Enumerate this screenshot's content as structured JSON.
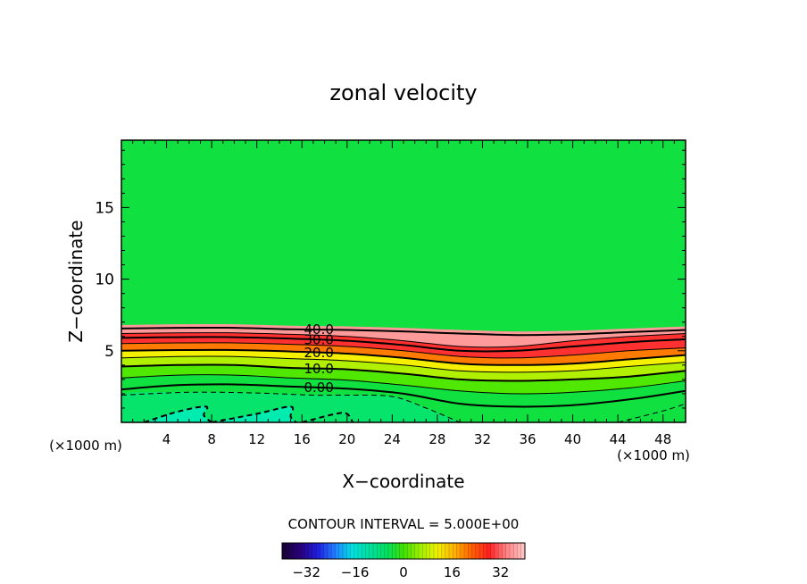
{
  "chart_data": {
    "type": "contour",
    "title": "zonal velocity",
    "xlabel": "X−coordinate",
    "ylabel": "Z−coordinate",
    "x_unit_label": "(×1000 m)",
    "y_unit_label": "(×1000 m)",
    "xlim": [
      0,
      50
    ],
    "ylim": [
      0,
      19.7
    ],
    "x_ticks": [
      4,
      8,
      12,
      16,
      20,
      24,
      28,
      32,
      36,
      40,
      44,
      48
    ],
    "x_tick_labels": [
      "4",
      "8",
      "12",
      "16",
      "20",
      "24",
      "28",
      "32",
      "36",
      "40",
      "44",
      "48"
    ],
    "y_ticks": [
      5,
      10,
      15
    ],
    "y_tick_labels": [
      "5",
      "10",
      "15"
    ],
    "contour_interval_text": "CONTOUR INTERVAL = 5.000E+00",
    "contour_interval": 5,
    "contour_labels": [
      {
        "text": "40.0",
        "value": 40
      },
      {
        "text": "30.0",
        "value": 30
      },
      {
        "text": "20.0",
        "value": 20
      },
      {
        "text": "10.0",
        "value": 10
      },
      {
        "text": "0.00",
        "value": 0
      }
    ],
    "label_x": 17.5,
    "contours": [
      {
        "value": 40,
        "z": [
          6.55,
          6.6,
          6.6,
          6.5,
          6.45,
          6.35,
          6.2,
          6.1,
          6.15,
          6.3,
          6.45
        ]
      },
      {
        "value": 35,
        "z": [
          6.2,
          6.25,
          6.25,
          6.15,
          6.0,
          5.7,
          5.3,
          5.3,
          5.7,
          6.0,
          6.2
        ]
      },
      {
        "value": 30,
        "z": [
          5.9,
          5.95,
          5.95,
          5.85,
          5.7,
          5.4,
          5.0,
          5.0,
          5.3,
          5.6,
          5.8
        ]
      },
      {
        "value": 25,
        "z": [
          5.5,
          5.55,
          5.55,
          5.45,
          5.3,
          5.0,
          4.6,
          4.5,
          4.7,
          5.0,
          5.2
        ]
      },
      {
        "value": 20,
        "z": [
          5.0,
          5.05,
          5.05,
          4.95,
          4.8,
          4.5,
          4.1,
          4.0,
          4.1,
          4.4,
          4.7
        ]
      },
      {
        "value": 15,
        "z": [
          4.5,
          4.6,
          4.6,
          4.45,
          4.3,
          4.0,
          3.6,
          3.5,
          3.6,
          3.9,
          4.2
        ]
      },
      {
        "value": 10,
        "z": [
          3.9,
          4.0,
          4.0,
          3.8,
          3.7,
          3.4,
          3.0,
          2.9,
          3.0,
          3.2,
          3.6
        ]
      },
      {
        "value": 5,
        "z": [
          3.1,
          3.3,
          3.3,
          3.1,
          2.95,
          2.6,
          2.2,
          2.0,
          2.1,
          2.4,
          2.9
        ]
      },
      {
        "value": 0,
        "z": [
          2.3,
          2.6,
          2.65,
          2.5,
          2.35,
          2.0,
          1.3,
          1.1,
          1.2,
          1.6,
          2.2
        ]
      }
    ],
    "contour_x": [
      0,
      5,
      10,
      15,
      20,
      25,
      30,
      35,
      40,
      45,
      50
    ],
    "dashed_contours": [
      {
        "value": -5,
        "points": [
          [
            0,
            1.9
          ],
          [
            6,
            2.1
          ],
          [
            12,
            2.05
          ],
          [
            17,
            1.9
          ],
          [
            20,
            1.9
          ],
          [
            24,
            1.8
          ],
          [
            27,
            1.0
          ],
          [
            30,
            0
          ]
        ]
      },
      {
        "value": -5,
        "points": [
          [
            44,
            0
          ],
          [
            48,
            0.8
          ],
          [
            50,
            1.3
          ]
        ]
      },
      {
        "value": -10,
        "points": [
          [
            2,
            0
          ],
          [
            5,
            0.75
          ],
          [
            7.5,
            1.1
          ],
          [
            7.3,
            0.5
          ],
          [
            8,
            0
          ]
        ]
      },
      {
        "value": -10,
        "points": [
          [
            8,
            0
          ],
          [
            12,
            0.6
          ],
          [
            15,
            1.1
          ],
          [
            15,
            0.4
          ],
          [
            15.5,
            0
          ]
        ]
      },
      {
        "value": -10,
        "points": [
          [
            16,
            0
          ],
          [
            19,
            0.6
          ],
          [
            20,
            0.6
          ],
          [
            20.5,
            0
          ]
        ]
      }
    ],
    "colorbar": {
      "min": -40,
      "max": 40,
      "tick_values": [
        -32,
        -16,
        0,
        16,
        32
      ],
      "tick_labels": [
        "−32",
        "−16",
        "0",
        "16",
        "32"
      ],
      "colors": [
        "#1a0038",
        "#2a0080",
        "#2020e0",
        "#2080ff",
        "#00e0e0",
        "#00e0a0",
        "#00e060",
        "#40e000",
        "#a0f000",
        "#f0f000",
        "#ffb000",
        "#ff6000",
        "#ff2020",
        "#ff8080",
        "#ffc0c0"
      ]
    },
    "field_colors": {
      "top_band": "#ff9a9a",
      "red": "#ff3030",
      "orange": "#ff7a00",
      "yellow": "#f5f000",
      "yellow_green": "#b0f000",
      "green": "#50e800",
      "bright_green": "#10e040",
      "cyan_green": "#00e890",
      "cyan": "#00f0d8"
    }
  }
}
